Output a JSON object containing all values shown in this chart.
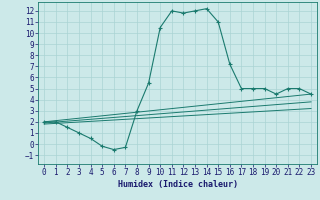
{
  "xlabel": "Humidex (Indice chaleur)",
  "ylabel": "",
  "background_color": "#cce9e9",
  "grid_color": "#aad4d4",
  "line_color": "#1a7a6e",
  "xlim": [
    -0.5,
    23.5
  ],
  "ylim": [
    -1.8,
    12.8
  ],
  "xticks": [
    0,
    1,
    2,
    3,
    4,
    5,
    6,
    7,
    8,
    9,
    10,
    11,
    12,
    13,
    14,
    15,
    16,
    17,
    18,
    19,
    20,
    21,
    22,
    23
  ],
  "yticks": [
    -1,
    0,
    1,
    2,
    3,
    4,
    5,
    6,
    7,
    8,
    9,
    10,
    11,
    12
  ],
  "main_curve_x": [
    0,
    1,
    2,
    3,
    4,
    5,
    6,
    7,
    8,
    9,
    10,
    11,
    12,
    13,
    14,
    15,
    16,
    17,
    18,
    19,
    20,
    21,
    22,
    23
  ],
  "main_curve_y": [
    2,
    2,
    1.5,
    1,
    0.5,
    -0.2,
    -0.5,
    -0.3,
    3.0,
    5.5,
    10.5,
    12,
    11.8,
    12,
    12.2,
    11,
    7.2,
    5,
    5,
    5,
    4.5,
    5,
    5,
    4.5
  ],
  "line2_x": [
    0,
    23
  ],
  "line2_y": [
    1.8,
    3.2
  ],
  "line3_x": [
    0,
    23
  ],
  "line3_y": [
    1.9,
    3.8
  ],
  "line4_x": [
    0,
    23
  ],
  "line4_y": [
    2.0,
    4.5
  ]
}
